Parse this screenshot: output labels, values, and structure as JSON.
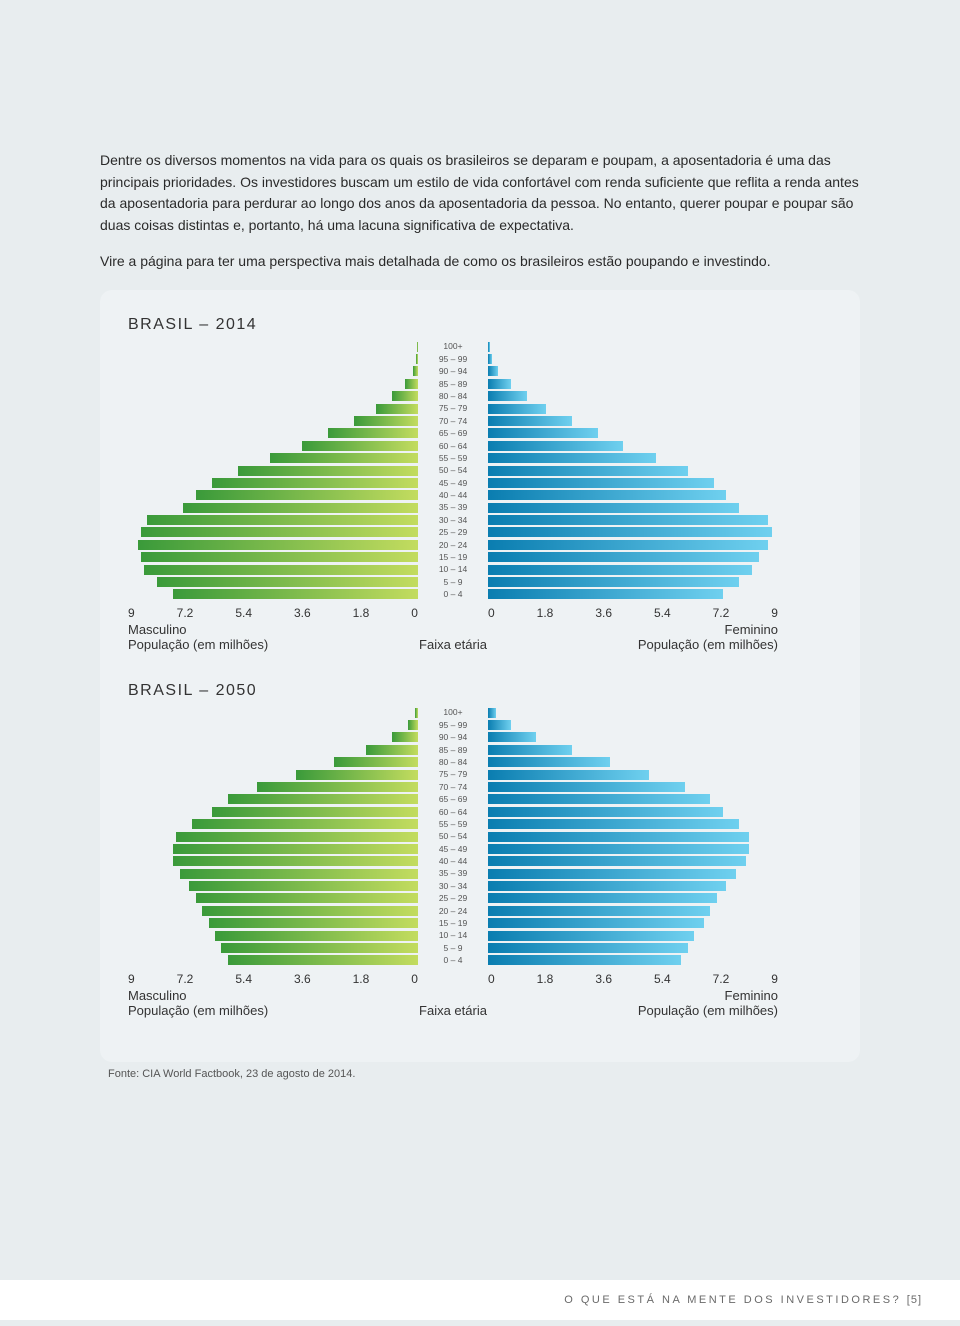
{
  "text": {
    "para1": "Dentre os diversos momentos na vida para os quais os brasileiros se deparam e poupam, a aposentadoria é uma das principais prioridades. Os investidores buscam um estilo de vida confortável com renda suficiente que reflita a renda antes da aposentadoria para perdurar ao longo dos anos da aposentadoria da pessoa. No entanto, querer poupar e poupar são duas coisas distintas e, portanto, há uma lacuna significativa de expectativa.",
    "para2": "Vire a página para ter uma perspectiva mais detalhada de como os brasileiros estão poupando e investindo.",
    "source": "Fonte: CIA World Factbook, 23 de agosto de 2014.",
    "footer_text": "O QUE ESTÁ NA MENTE DOS INVESTIDORES?",
    "footer_page": "[5]"
  },
  "axis_ticks": [
    "9",
    "7.2",
    "5.4",
    "3.6",
    "1.8",
    "0"
  ],
  "axis_ticks_right": [
    "0",
    "1.8",
    "3.6",
    "5.4",
    "7.2",
    "9"
  ],
  "labels": {
    "male": "Masculino",
    "female": "Feminino",
    "age_axis": "Faixa etária",
    "pop": "População (em milhões)"
  },
  "age_groups": [
    "100+",
    "95 – 99",
    "90 – 94",
    "85 – 89",
    "80 – 84",
    "75 – 79",
    "70 – 74",
    "65 – 69",
    "60 – 64",
    "55 – 59",
    "50 – 54",
    "45 – 49",
    "40 – 44",
    "35 – 39",
    "30 – 34",
    "25 – 29",
    "20 – 24",
    "15 – 19",
    "10 – 14",
    "5 – 9",
    "0 – 4"
  ],
  "colors": {
    "page_bg": "#e8edef",
    "panel_bg": "#eef2f4",
    "text": "#2a2a2a",
    "male_gradient_from": "#c3dc5f",
    "male_gradient_to": "#3a9a3a",
    "female_gradient_from": "#0a7db0",
    "female_gradient_to": "#6fd0ef",
    "footer_bg": "#ffffff",
    "footer_text": "#6a6a6a"
  },
  "pyramids": [
    {
      "title": "BRASIL – 2014",
      "xmax": 9,
      "male": [
        0.02,
        0.05,
        0.15,
        0.4,
        0.8,
        1.3,
        2.0,
        2.8,
        3.6,
        4.6,
        5.6,
        6.4,
        6.9,
        7.3,
        8.4,
        8.6,
        8.7,
        8.6,
        8.5,
        8.1,
        7.6
      ],
      "female": [
        0.05,
        0.12,
        0.3,
        0.7,
        1.2,
        1.8,
        2.6,
        3.4,
        4.2,
        5.2,
        6.2,
        7.0,
        7.4,
        7.8,
        8.7,
        8.8,
        8.7,
        8.4,
        8.2,
        7.8,
        7.3
      ]
    },
    {
      "title": "BRASIL – 2050",
      "xmax": 9,
      "male": [
        0.08,
        0.3,
        0.8,
        1.6,
        2.6,
        3.8,
        5.0,
        5.9,
        6.4,
        7.0,
        7.5,
        7.6,
        7.6,
        7.4,
        7.1,
        6.9,
        6.7,
        6.5,
        6.3,
        6.1,
        5.9
      ],
      "female": [
        0.25,
        0.7,
        1.5,
        2.6,
        3.8,
        5.0,
        6.1,
        6.9,
        7.3,
        7.8,
        8.1,
        8.1,
        8.0,
        7.7,
        7.4,
        7.1,
        6.9,
        6.7,
        6.4,
        6.2,
        6.0
      ]
    }
  ]
}
